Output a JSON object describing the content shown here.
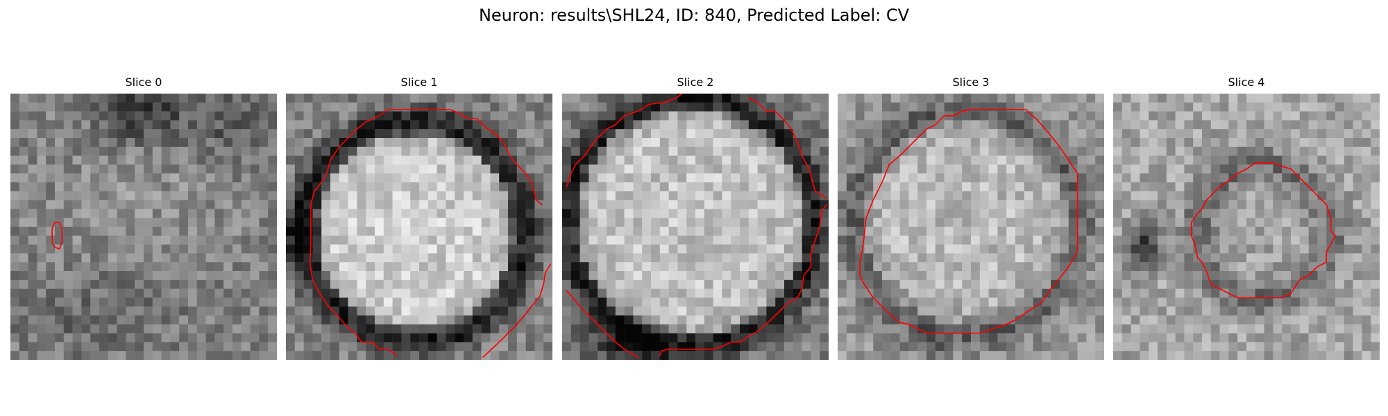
{
  "figure": {
    "title": "Neuron: results\\SHL24, ID: 840, Predicted Label: CV",
    "contour_color": "#ff0000",
    "colormap": "grayscale"
  },
  "slices": [
    {
      "title": "Slice 0"
    },
    {
      "title": "Slice 1"
    },
    {
      "title": "Slice 2"
    },
    {
      "title": "Slice 3"
    },
    {
      "title": "Slice 4"
    }
  ]
}
